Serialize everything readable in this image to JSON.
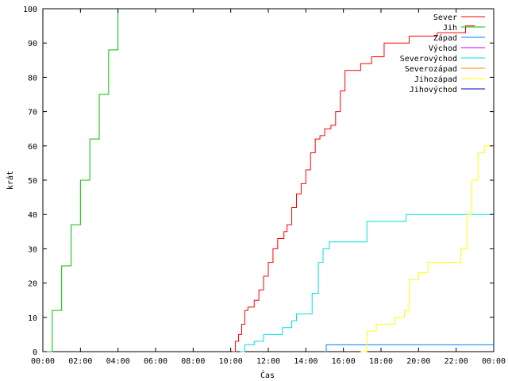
{
  "chart_data": {
    "type": "line",
    "xlabel": "Čas",
    "ylabel": "krát",
    "xlim": [
      "00:00",
      "24:00"
    ],
    "ylim": [
      0,
      100
    ],
    "grid": false,
    "legend_position": "top-right",
    "x_ticks": [
      "00:00",
      "02:00",
      "04:00",
      "06:00",
      "08:00",
      "10:00",
      "12:00",
      "14:00",
      "16:00",
      "18:00",
      "20:00",
      "22:00",
      "00:00"
    ],
    "y_ticks": [
      0,
      10,
      20,
      30,
      40,
      50,
      60,
      70,
      80,
      90,
      100
    ],
    "series": [
      {
        "name": "Sever",
        "color": "#ff0000",
        "points": [
          [
            "10:05",
            0
          ],
          [
            "10:15",
            3
          ],
          [
            "10:25",
            5
          ],
          [
            "10:35",
            8
          ],
          [
            "10:45",
            12
          ],
          [
            "10:55",
            13
          ],
          [
            "11:15",
            15
          ],
          [
            "11:30",
            18
          ],
          [
            "11:45",
            22
          ],
          [
            "12:00",
            26
          ],
          [
            "12:15",
            30
          ],
          [
            "12:30",
            33
          ],
          [
            "12:50",
            35
          ],
          [
            "13:00",
            37
          ],
          [
            "13:15",
            42
          ],
          [
            "13:30",
            46
          ],
          [
            "13:45",
            49
          ],
          [
            "14:00",
            53
          ],
          [
            "14:15",
            58
          ],
          [
            "14:30",
            62
          ],
          [
            "14:45",
            63
          ],
          [
            "15:00",
            65
          ],
          [
            "15:20",
            66
          ],
          [
            "15:35",
            70
          ],
          [
            "15:50",
            76
          ],
          [
            "16:05",
            82
          ],
          [
            "16:30",
            82
          ],
          [
            "16:55",
            84
          ],
          [
            "17:30",
            86
          ],
          [
            "18:10",
            90
          ],
          [
            "19:00",
            90
          ],
          [
            "19:30",
            92
          ],
          [
            "21:00",
            93
          ],
          [
            "22:30",
            95
          ],
          [
            "23:00",
            95
          ]
        ]
      },
      {
        "name": "Jih",
        "color": "#00c000",
        "points": [
          [
            "00:00",
            0
          ],
          [
            "00:30",
            12
          ],
          [
            "01:00",
            25
          ],
          [
            "01:30",
            37
          ],
          [
            "02:00",
            50
          ],
          [
            "02:30",
            62
          ],
          [
            "03:00",
            75
          ],
          [
            "03:30",
            88
          ],
          [
            "04:00",
            100
          ]
        ]
      },
      {
        "name": "Západ",
        "color": "#0080ff",
        "points": [
          [
            "15:00",
            0
          ],
          [
            "15:05",
            2
          ],
          [
            "24:00",
            2
          ]
        ]
      },
      {
        "name": "Východ",
        "color": "#c000ff",
        "points": []
      },
      {
        "name": "Severovýchod",
        "color": "#00e0e0",
        "points": [
          [
            "10:30",
            0
          ],
          [
            "10:45",
            2
          ],
          [
            "11:15",
            3
          ],
          [
            "11:45",
            5
          ],
          [
            "12:30",
            5
          ],
          [
            "12:45",
            7
          ],
          [
            "13:15",
            9
          ],
          [
            "13:30",
            11
          ],
          [
            "14:00",
            11
          ],
          [
            "14:20",
            17
          ],
          [
            "14:40",
            26
          ],
          [
            "14:55",
            30
          ],
          [
            "15:15",
            32
          ],
          [
            "16:45",
            32
          ],
          [
            "17:15",
            38
          ],
          [
            "19:00",
            38
          ],
          [
            "19:20",
            40
          ],
          [
            "24:00",
            40
          ]
        ]
      },
      {
        "name": "Severozápad",
        "color": "#ff8000",
        "points": []
      },
      {
        "name": "Jihozápad",
        "color": "#ffff00",
        "points": [
          [
            "16:55",
            0
          ],
          [
            "17:15",
            6
          ],
          [
            "17:45",
            8
          ],
          [
            "18:30",
            8
          ],
          [
            "18:45",
            10
          ],
          [
            "19:15",
            12
          ],
          [
            "19:30",
            21
          ],
          [
            "20:00",
            23
          ],
          [
            "20:30",
            26
          ],
          [
            "22:00",
            26
          ],
          [
            "22:15",
            30
          ],
          [
            "22:35",
            40
          ],
          [
            "22:50",
            50
          ],
          [
            "23:10",
            58
          ],
          [
            "23:30",
            60
          ],
          [
            "24:00",
            60
          ]
        ]
      },
      {
        "name": "Jihovýchod",
        "color": "#0000c0",
        "points": []
      }
    ]
  }
}
